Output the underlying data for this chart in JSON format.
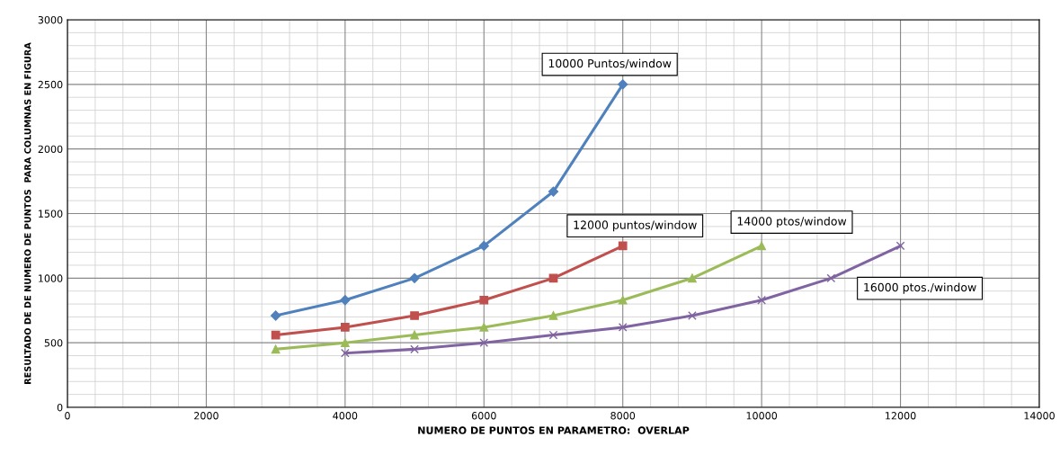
{
  "chart_data": {
    "type": "line",
    "xlabel": "NUMERO DE PUNTOS EN PARAMETRO:  OVERLAP",
    "ylabel": "RESULTADO DE DE NUMERO DE PUNTOS  PARA COLUMNAS EN FIGURA",
    "xlim": [
      0,
      14000
    ],
    "xticks": [
      0,
      2000,
      4000,
      6000,
      8000,
      10000,
      12000,
      14000
    ],
    "ylim": [
      0,
      3000
    ],
    "yticks": [
      0,
      500,
      1000,
      1500,
      2000,
      2500,
      3000
    ],
    "grid": true,
    "legend": false,
    "series": [
      {
        "name": "10000 Puntos/window",
        "color": "#4f81bd",
        "marker": "diamond",
        "x": [
          3000,
          4000,
          5000,
          6000,
          7000,
          8000
        ],
        "values": [
          710,
          830,
          1000,
          1250,
          1670,
          2500
        ]
      },
      {
        "name": "12000 puntos/window",
        "color": "#c0504d",
        "marker": "square",
        "x": [
          3000,
          4000,
          5000,
          6000,
          7000,
          8000
        ],
        "values": [
          560,
          620,
          710,
          830,
          1000,
          1250
        ]
      },
      {
        "name": "14000 ptos/window",
        "color": "#9bbb59",
        "marker": "triangle",
        "x": [
          3000,
          4000,
          5000,
          6000,
          7000,
          8000,
          9000,
          10000
        ],
        "values": [
          450,
          500,
          560,
          620,
          710,
          830,
          1000,
          1250
        ]
      },
      {
        "name": "16000 ptos./window",
        "color": "#8064a2",
        "marker": "cross",
        "x": [
          4000,
          5000,
          6000,
          7000,
          8000,
          9000,
          10000,
          11000,
          12000
        ],
        "values": [
          420,
          450,
          500,
          560,
          620,
          710,
          830,
          1000,
          1250
        ]
      }
    ]
  }
}
